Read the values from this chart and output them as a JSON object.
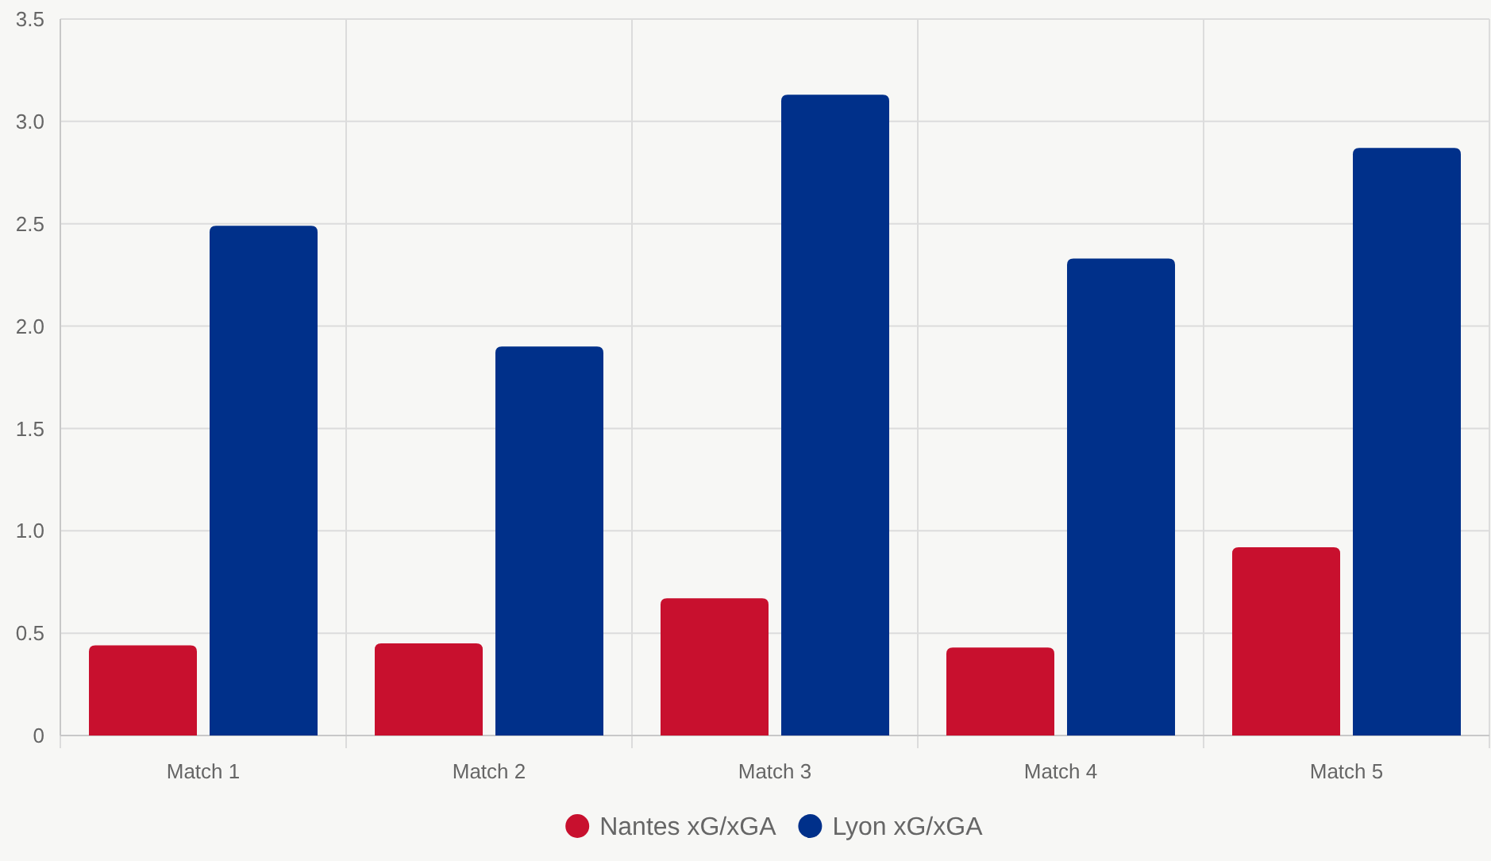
{
  "chart_data": {
    "type": "bar",
    "categories": [
      "Match 1",
      "Match 2",
      "Match 3",
      "Match 4",
      "Match 5"
    ],
    "series": [
      {
        "name": "Nantes xG/xGA",
        "color": "#c8102e",
        "values": [
          0.44,
          0.45,
          0.67,
          0.43,
          0.92
        ]
      },
      {
        "name": "Lyon xG/xGA",
        "color": "#00308a",
        "values": [
          2.49,
          1.9,
          3.13,
          2.33,
          2.87
        ]
      }
    ],
    "ylim": [
      0,
      3.5
    ],
    "yticks": [
      0,
      {
        "value": 0.5,
        "label": "0.5"
      },
      {
        "value": 1,
        "label": "1.0"
      },
      {
        "value": 1.5,
        "label": "1.5"
      },
      {
        "value": 2,
        "label": "2.0"
      },
      {
        "value": 2.5,
        "label": "2.5"
      },
      {
        "value": 3,
        "label": "3.0"
      },
      {
        "value": 3.5,
        "label": "3.5"
      }
    ],
    "grid": true,
    "legend": "bottom"
  }
}
